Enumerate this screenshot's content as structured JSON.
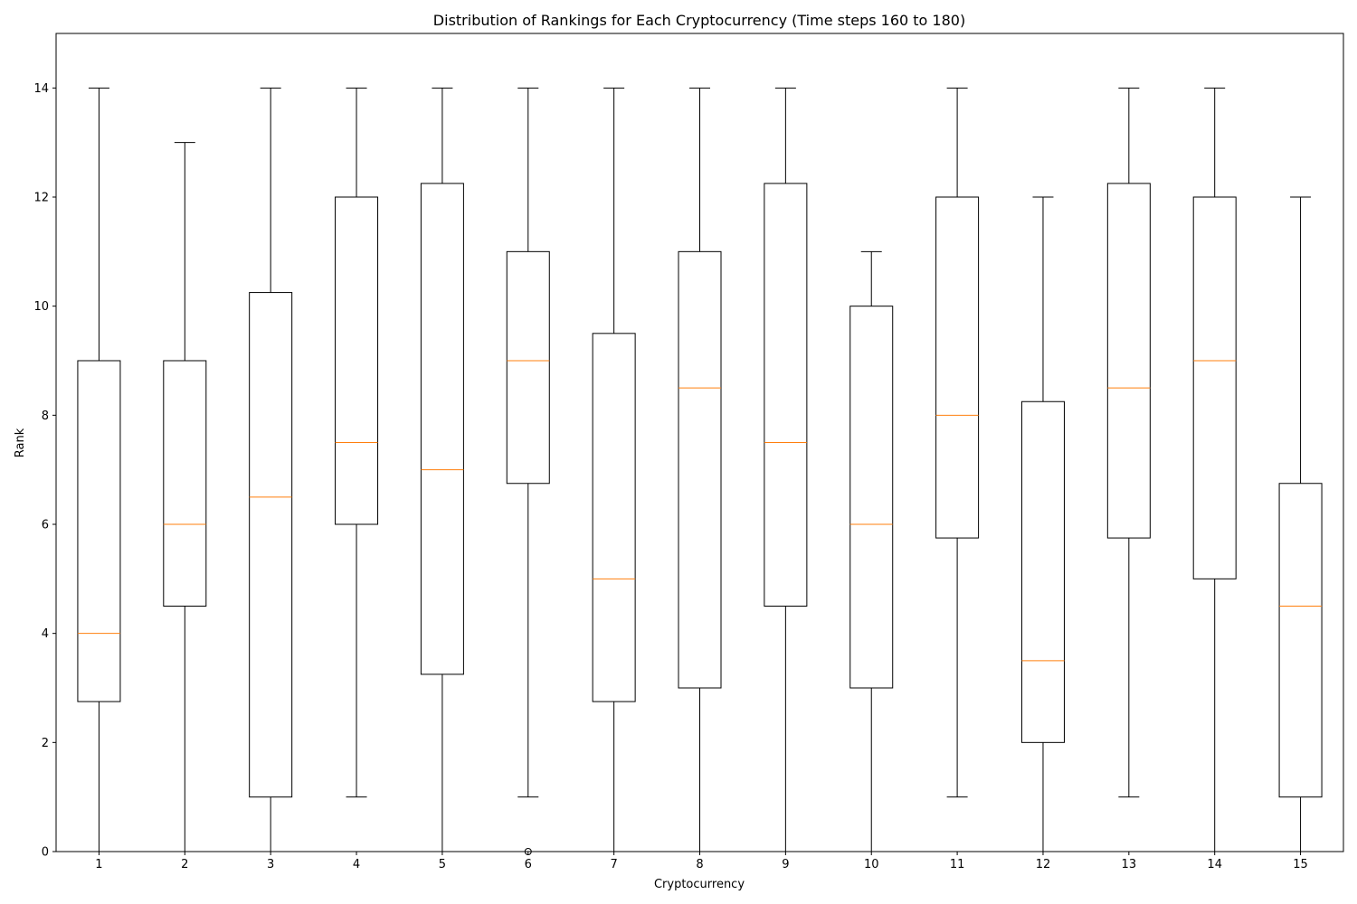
{
  "chart_data": {
    "type": "box",
    "title": "Distribution of Rankings for Each Cryptocurrency (Time steps 160 to 180)",
    "xlabel": "Cryptocurrency",
    "ylabel": "Rank",
    "ylim": [
      0,
      15
    ],
    "yticks": [
      0,
      2,
      4,
      6,
      8,
      10,
      12,
      14
    ],
    "grid": false,
    "legend": "none",
    "colors": {
      "box": "#000000",
      "median": "#ff7f0e",
      "whisker": "#000000",
      "outlier": "#000000"
    },
    "categories": [
      "1",
      "2",
      "3",
      "4",
      "5",
      "6",
      "7",
      "8",
      "9",
      "10",
      "11",
      "12",
      "13",
      "14",
      "15"
    ],
    "boxes": [
      {
        "whislo": 0,
        "q1": 2.75,
        "med": 4,
        "q3": 9,
        "whishi": 14,
        "fliers": []
      },
      {
        "whislo": 0,
        "q1": 4.5,
        "med": 6,
        "q3": 9,
        "whishi": 13,
        "fliers": []
      },
      {
        "whislo": 0,
        "q1": 1,
        "med": 6.5,
        "q3": 10.25,
        "whishi": 14,
        "fliers": []
      },
      {
        "whislo": 1,
        "q1": 6,
        "med": 7.5,
        "q3": 12,
        "whishi": 14,
        "fliers": []
      },
      {
        "whislo": 0,
        "q1": 3.25,
        "med": 7,
        "q3": 12.25,
        "whishi": 14,
        "fliers": []
      },
      {
        "whislo": 1,
        "q1": 6.75,
        "med": 9,
        "q3": 11,
        "whishi": 14,
        "fliers": [
          0
        ]
      },
      {
        "whislo": 0,
        "q1": 2.75,
        "med": 5,
        "q3": 9.5,
        "whishi": 14,
        "fliers": []
      },
      {
        "whislo": 0,
        "q1": 3,
        "med": 8.5,
        "q3": 11,
        "whishi": 14,
        "fliers": []
      },
      {
        "whislo": 0,
        "q1": 4.5,
        "med": 7.5,
        "q3": 12.25,
        "whishi": 14,
        "fliers": []
      },
      {
        "whislo": 0,
        "q1": 3,
        "med": 6,
        "q3": 10,
        "whishi": 11,
        "fliers": []
      },
      {
        "whislo": 1,
        "q1": 5.75,
        "med": 8,
        "q3": 12,
        "whishi": 14,
        "fliers": []
      },
      {
        "whislo": 0,
        "q1": 2,
        "med": 3.5,
        "q3": 8.25,
        "whishi": 12,
        "fliers": []
      },
      {
        "whislo": 1,
        "q1": 5.75,
        "med": 8.5,
        "q3": 12.25,
        "whishi": 14,
        "fliers": []
      },
      {
        "whislo": 0,
        "q1": 5,
        "med": 9,
        "q3": 12,
        "whishi": 14,
        "fliers": []
      },
      {
        "whislo": 0,
        "q1": 1,
        "med": 4.5,
        "q3": 6.75,
        "whishi": 12,
        "fliers": []
      }
    ]
  }
}
